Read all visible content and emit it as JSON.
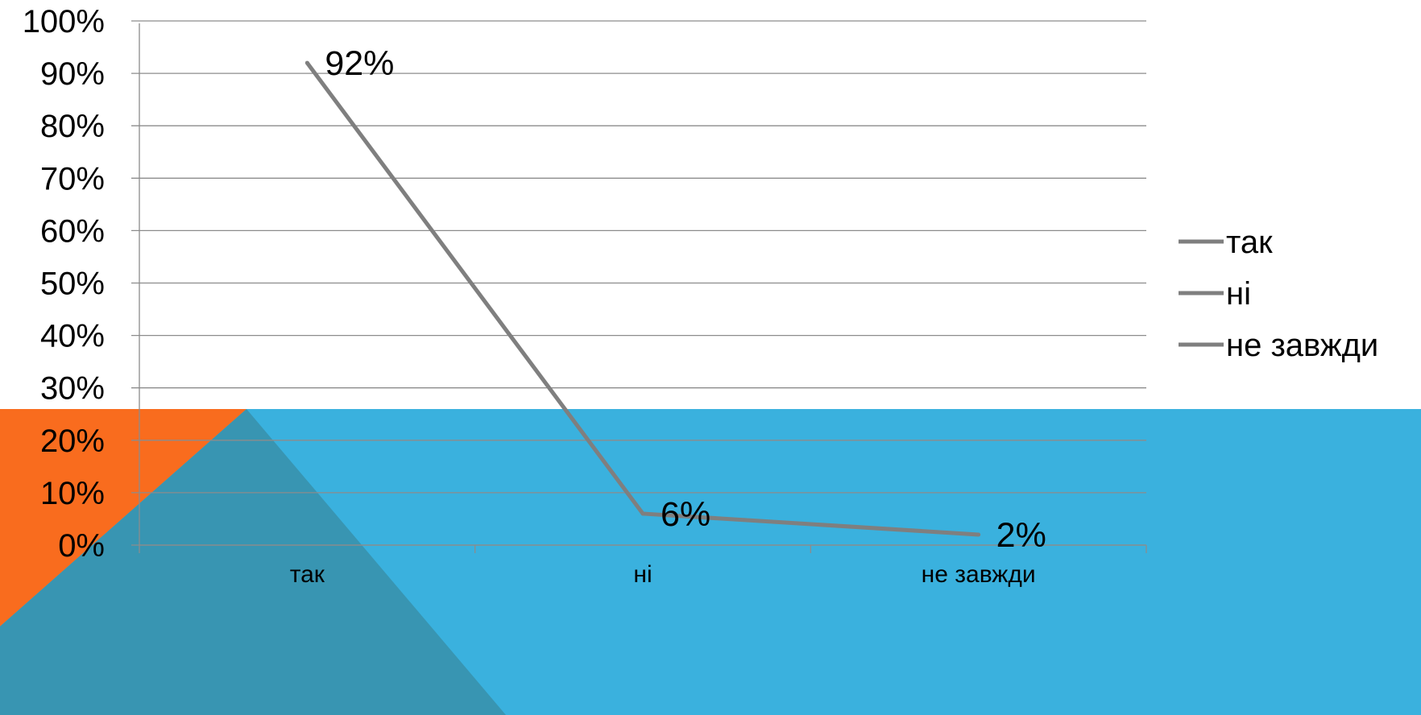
{
  "theme": {
    "background": "#ffffff",
    "band_blue": "#3AB1DE",
    "accent_orange": "#F96C1E",
    "overlay_teal": "#3895B2",
    "gridline": "#8C8C8C",
    "series_color": "#7F7F7F"
  },
  "chart_data": {
    "type": "line",
    "categories": [
      "так",
      "ні",
      "не завжди"
    ],
    "series": [
      {
        "values": [
          92,
          6,
          2
        ]
      }
    ],
    "data_labels": [
      "92%",
      "6%",
      "2%"
    ],
    "ylim": [
      0,
      100
    ],
    "y_ticks": [
      0,
      10,
      20,
      30,
      40,
      50,
      60,
      70,
      80,
      90,
      100
    ],
    "y_tick_labels": [
      "0%",
      "10%",
      "20%",
      "30%",
      "40%",
      "50%",
      "60%",
      "70%",
      "80%",
      "90%",
      "100%"
    ],
    "grid": true,
    "legend_position": "right",
    "legend_entries": [
      "так",
      "ні",
      "не завжди"
    ],
    "xlabel": "",
    "ylabel": "",
    "title": ""
  }
}
